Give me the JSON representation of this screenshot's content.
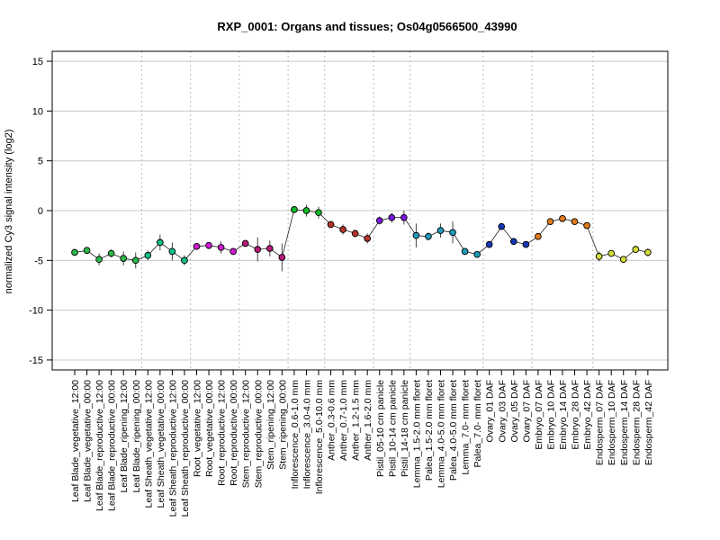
{
  "chart_data": {
    "type": "line",
    "title": "RXP_0001: Organs and tissues; Os04g0566500_43990",
    "xlabel": "",
    "ylabel": "normalized Cy3 signal intensity (log2)",
    "ylim": [
      -16,
      16
    ],
    "yticks": [
      -15,
      -10,
      -5,
      0,
      5,
      10,
      15
    ],
    "grid": "horizontal solid, vertical dotted group separators",
    "categories": [
      "Leaf Blade_vegetative_12:00",
      "Leaf Blade_vegetative_00:00",
      "Leaf Blade_reproductive_12:00",
      "Leaf Blade_reproductive_00:00",
      "Leaf Blade_ripening_12:00",
      "Leaf Blade_ripening_00:00",
      "Leaf Sheath_vegetative_12:00",
      "Leaf Sheath_vegetative_00:00",
      "Leaf Sheath_reproductive_12:00",
      "Leaf Sheath_reproductive_00:00",
      "Root_vegetative_12:00",
      "Root_vegetative_00:00",
      "Root_reproductive_12:00",
      "Root_reproductive_00:00",
      "Stem_reproductive_12:00",
      "Stem_reproductive_00:00",
      "Stem_ripening_12:00",
      "Stem_ripening_00:00",
      "Inflorescence_0.6-1.0 mm",
      "Inflorescence_3.0-4.0 mm",
      "Inflorescence_5.0-10.0 mm",
      "Anther_0.3-0.6 mm",
      "Anther_0.7-1.0 mm",
      "Anther_1.2-1.5 mm",
      "Anther_1.6-2.0 mm",
      "Pistil_05-10 cm panicle",
      "Pistil_10-14 cm panicle",
      "Pistil_14-18 cm panicle",
      "Lemma_1.5-2.0 mm floret",
      "Palea_1.5-2.0 mm floret",
      "Lemma_4.0-5.0 mm floret",
      "Palea_4.0-5.0 mm floret",
      "Lemma_7.0- mm floret",
      "Palea_7.0- mm floret",
      "Ovary_01 DAF",
      "Ovary_03 DAF",
      "Ovary_05 DAF",
      "Ovary_07 DAF",
      "Embryo_07 DAF",
      "Embryo_10 DAF",
      "Embryo_14 DAF",
      "Embryo_28 DAF",
      "Embryo_42 DAF",
      "Endosperm_07 DAF",
      "Endosperm_10 DAF",
      "Endosperm_14 DAF",
      "Endosperm_28 DAF",
      "Endosperm_42 DAF"
    ],
    "series": [
      {
        "values": [
          -4.2,
          -4.0,
          -4.9,
          -4.3,
          -4.8,
          -5.0,
          -4.5,
          -3.2,
          -4.1,
          -5.0,
          -3.6,
          -3.5,
          -3.7,
          -4.1,
          -3.3,
          -3.9,
          -3.8,
          -4.7,
          0.1,
          0.0,
          -0.2,
          -1.4,
          -1.9,
          -2.3,
          -2.8,
          -1.0,
          -0.7,
          -0.7,
          -2.5,
          -2.6,
          -2.0,
          -2.2,
          -4.1,
          -4.4,
          -3.4,
          -1.6,
          -3.1,
          -3.4,
          -2.6,
          -1.1,
          -0.8,
          -1.1,
          -1.5,
          -4.6,
          -4.3,
          -4.9,
          -3.9,
          -4.2
        ],
        "errors": [
          0.2,
          0.3,
          0.6,
          0.4,
          0.7,
          0.8,
          0.5,
          0.8,
          0.9,
          0.5,
          0.2,
          0.3,
          0.6,
          0.3,
          0.2,
          1.2,
          0.8,
          1.4,
          0.3,
          0.6,
          0.6,
          0.3,
          0.5,
          0.4,
          0.5,
          0.4,
          0.5,
          0.7,
          1.2,
          0.4,
          0.7,
          1.1,
          0.3,
          0.3,
          0.3,
          0.3,
          0.3,
          0.2,
          0.3,
          0.3,
          0.3,
          0.3,
          0.3,
          0.5,
          0.3,
          0.2,
          0.3,
          0.4
        ],
        "colors": [
          "#2eb84a",
          "#2eb84a",
          "#2eb84a",
          "#2eb84a",
          "#2eb84a",
          "#2eb84a",
          "#0fbf8a",
          "#0fbf8a",
          "#0fbf8a",
          "#0fbf8a",
          "#d11bd1",
          "#d11bd1",
          "#d11bd1",
          "#d11bd1",
          "#b51a78",
          "#b51a78",
          "#b51a78",
          "#b51a78",
          "#10b828",
          "#10b828",
          "#10b828",
          "#b5342a",
          "#b5342a",
          "#b5342a",
          "#b5342a",
          "#7a18e0",
          "#7a18e0",
          "#7a18e0",
          "#1f9ab8",
          "#1f9ab8",
          "#1f9ab8",
          "#1f9ab8",
          "#1f9ab8",
          "#1f9ab8",
          "#1737b5",
          "#1737b5",
          "#1737b5",
          "#1737b5",
          "#e07a1a",
          "#e07a1a",
          "#e07a1a",
          "#e07a1a",
          "#e07a1a",
          "#d4dc3a",
          "#d4dc3a",
          "#d4dc3a",
          "#d4dc3a",
          "#d4dc3a"
        ]
      }
    ],
    "group_separators_after": [
      5,
      9,
      13,
      17,
      20,
      24,
      27,
      33,
      37,
      42
    ]
  }
}
